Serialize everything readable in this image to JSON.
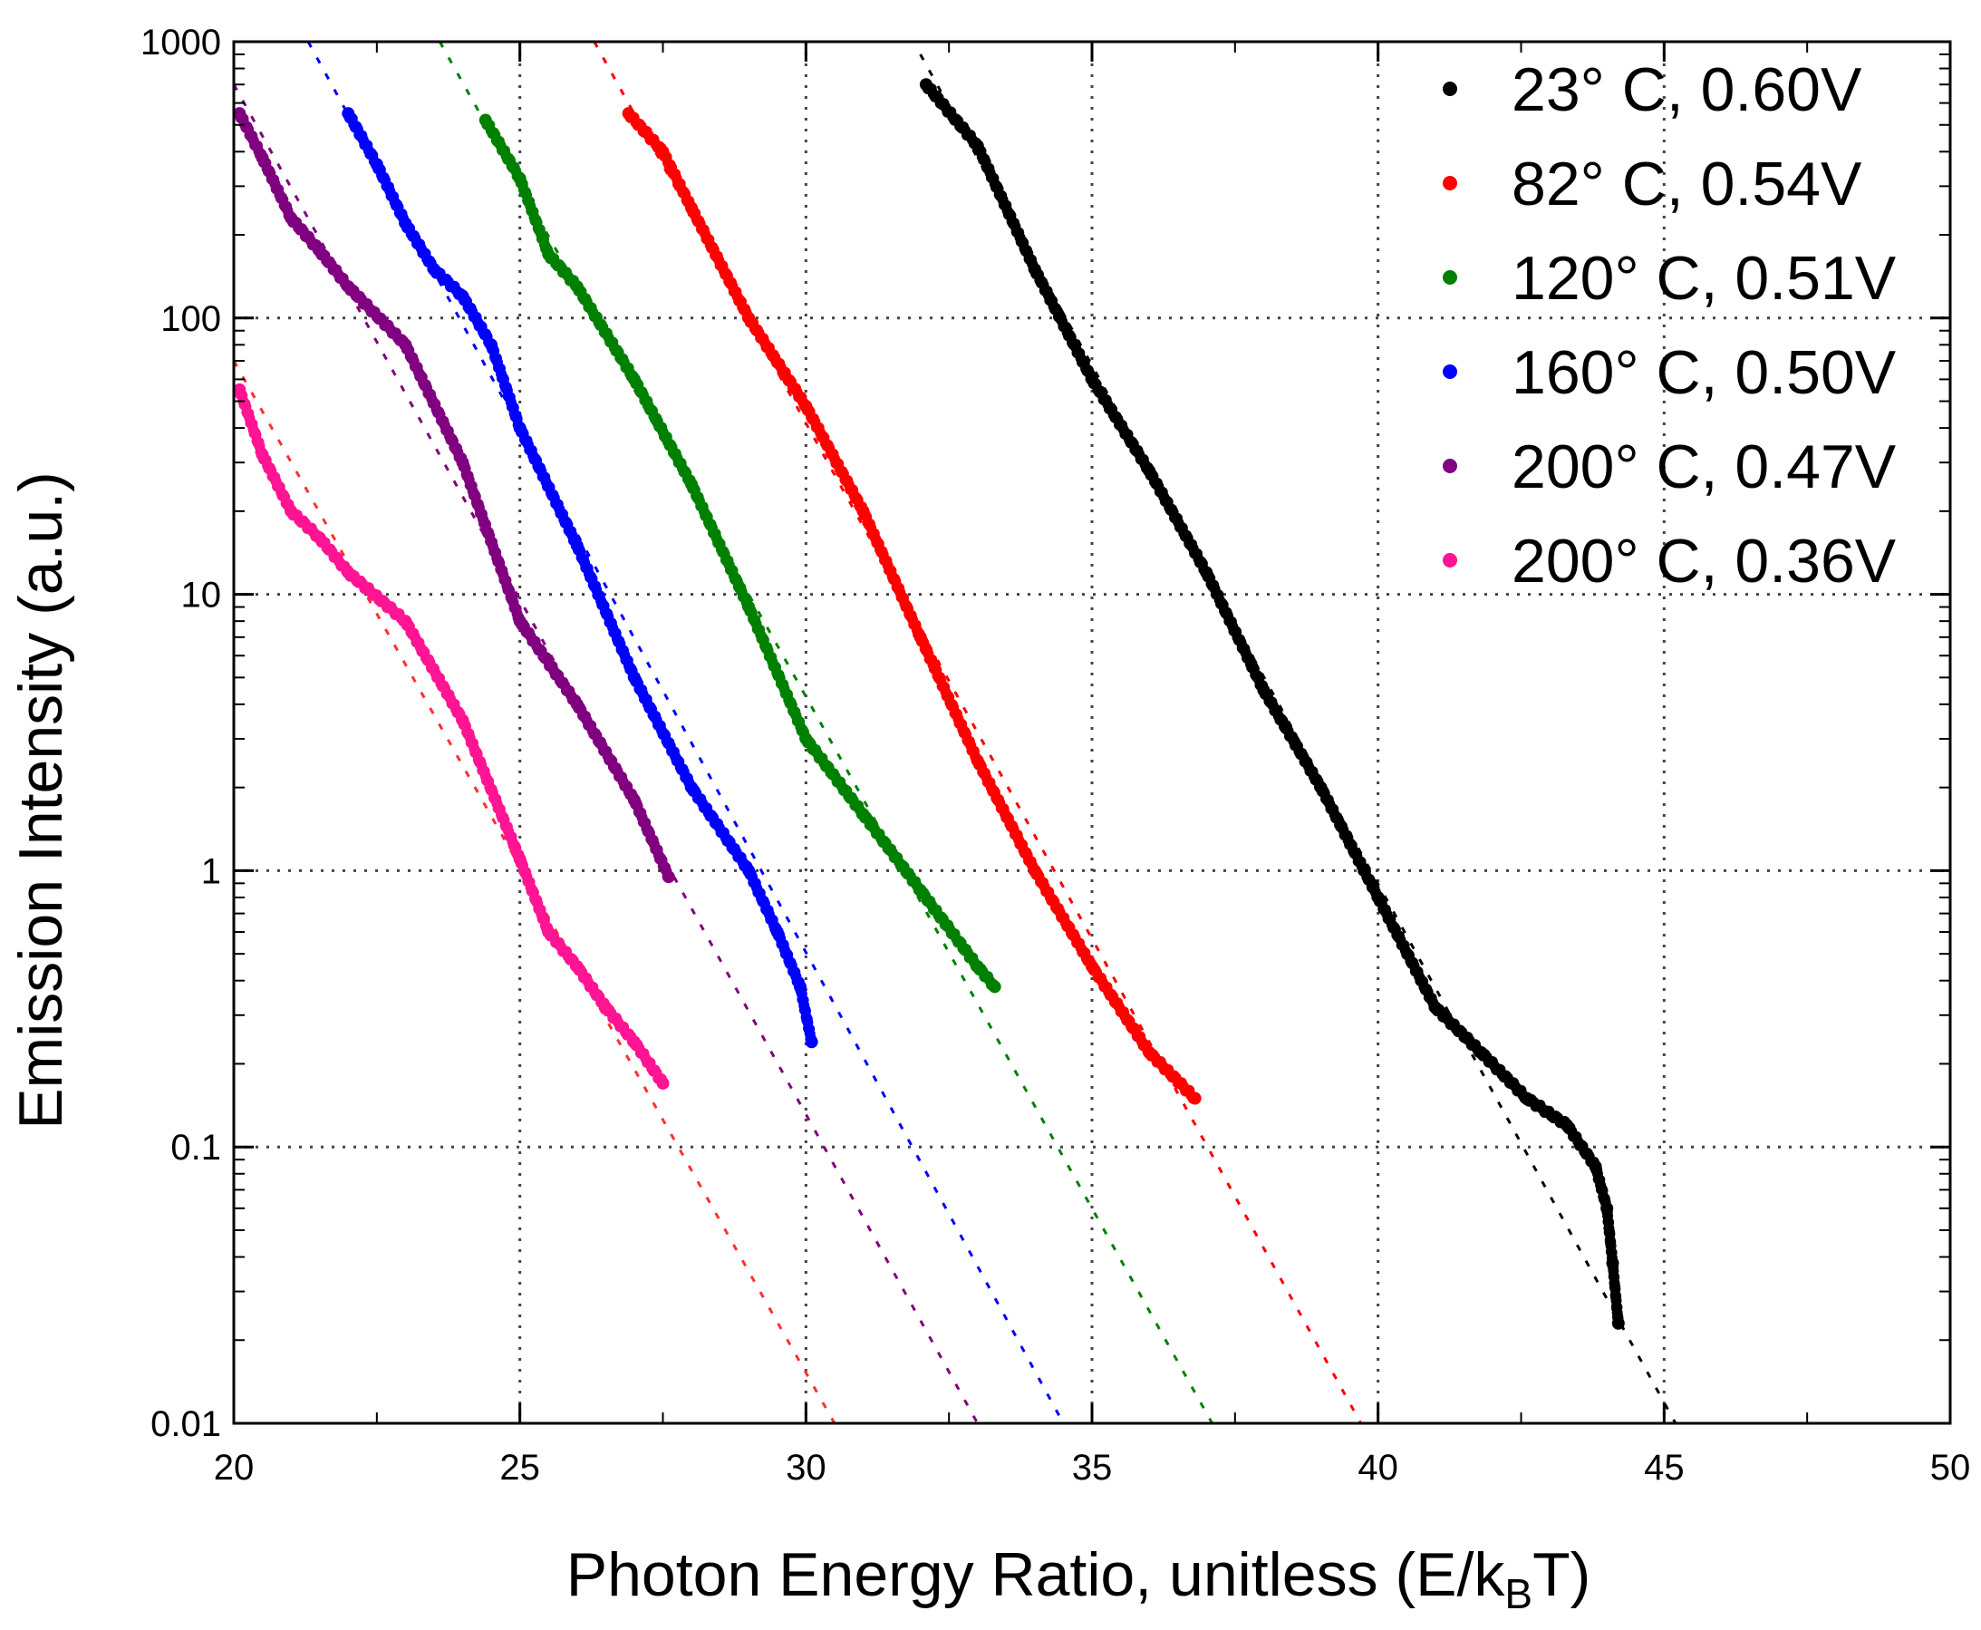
{
  "chart_data": {
    "type": "scatter",
    "title": "",
    "xlabel": "Photon Energy Ratio, unitless (E/k",
    "xlabel_sub": "B",
    "xlabel_end": "T)",
    "ylabel": "Emission Intensity  (a.u.)",
    "xlim": [
      20,
      50
    ],
    "ylim": [
      0.01,
      1000
    ],
    "yscale": "log",
    "grid": true,
    "legend_position": "top-right",
    "x_ticks": [
      20,
      25,
      30,
      35,
      40,
      45,
      50
    ],
    "x_tick_labels": [
      "20",
      "25",
      "30",
      "35",
      "40",
      "45",
      "50"
    ],
    "y_ticks": [
      0.01,
      0.1,
      1,
      10,
      100,
      1000
    ],
    "y_tick_labels": [
      "0.01",
      "0.1",
      "1",
      "10",
      "100",
      "1000"
    ],
    "series": [
      {
        "name": "23° C, 0.60V",
        "color": "#000000",
        "data": [
          [
            32.1,
            700
          ],
          [
            33.0,
            420
          ],
          [
            34.0,
            150
          ],
          [
            35.0,
            60
          ],
          [
            36.0,
            28
          ],
          [
            37.0,
            12
          ],
          [
            38.0,
            4.5
          ],
          [
            39.0,
            2.0
          ],
          [
            40.0,
            0.8
          ],
          [
            41.0,
            0.32
          ],
          [
            41.8,
            0.22
          ],
          [
            42.6,
            0.15
          ],
          [
            43.3,
            0.12
          ],
          [
            43.8,
            0.085
          ],
          [
            44.0,
            0.06
          ],
          [
            44.1,
            0.038
          ],
          [
            44.2,
            0.023
          ]
        ],
        "fit": [
          [
            32.0,
            900
          ],
          [
            45.2,
            0.01
          ]
        ]
      },
      {
        "name": "82° C, 0.54V",
        "color": "#ff0000",
        "data": [
          [
            26.9,
            550
          ],
          [
            27.5,
            400
          ],
          [
            28.0,
            250
          ],
          [
            29.0,
            100
          ],
          [
            30.0,
            48
          ],
          [
            31.0,
            20
          ],
          [
            32.0,
            7.0
          ],
          [
            33.0,
            2.5
          ],
          [
            34.0,
            1.0
          ],
          [
            35.0,
            0.45
          ],
          [
            36.0,
            0.22
          ],
          [
            36.8,
            0.15
          ]
        ],
        "fit": [
          [
            26.3,
            1000
          ],
          [
            39.7,
            0.01
          ]
        ]
      },
      {
        "name": "120° C, 0.51V",
        "color": "#008000",
        "data": [
          [
            24.4,
            520
          ],
          [
            25.0,
            320
          ],
          [
            25.5,
            170
          ],
          [
            26.0,
            130
          ],
          [
            27.0,
            60
          ],
          [
            28.0,
            25
          ],
          [
            29.0,
            9.0
          ],
          [
            30.0,
            3.0
          ],
          [
            31.0,
            1.6
          ],
          [
            32.0,
            0.85
          ],
          [
            33.0,
            0.45
          ],
          [
            33.3,
            0.38
          ]
        ],
        "fit": [
          [
            23.6,
            1000
          ],
          [
            37.1,
            0.01
          ]
        ]
      },
      {
        "name": "160° C, 0.50V",
        "color": "#0000ff",
        "data": [
          [
            22.0,
            550
          ],
          [
            22.5,
            360
          ],
          [
            23.0,
            220
          ],
          [
            23.5,
            150
          ],
          [
            24.0,
            120
          ],
          [
            24.5,
            80
          ],
          [
            25.0,
            40
          ],
          [
            26.0,
            15
          ],
          [
            27.0,
            5.0
          ],
          [
            28.0,
            2.0
          ],
          [
            29.0,
            1.0
          ],
          [
            29.5,
            0.6
          ],
          [
            29.9,
            0.38
          ],
          [
            30.1,
            0.24
          ]
        ],
        "fit": [
          [
            21.3,
            1000
          ],
          [
            34.5,
            0.01
          ]
        ]
      },
      {
        "name": "200° C, 0.47V",
        "color": "#800080",
        "data": [
          [
            20.1,
            550
          ],
          [
            20.5,
            380
          ],
          [
            21.0,
            230
          ],
          [
            21.5,
            175
          ],
          [
            22.0,
            130
          ],
          [
            23.0,
            80
          ],
          [
            24.0,
            30
          ],
          [
            25.0,
            8.0
          ],
          [
            26.0,
            4.0
          ],
          [
            27.0,
            1.8
          ],
          [
            27.6,
            0.95
          ]
        ],
        "fit": [
          [
            20.0,
            700
          ],
          [
            33.0,
            0.01
          ]
        ]
      },
      {
        "name": "200° C, 0.36V",
        "color": "#ff1493",
        "data": [
          [
            20.1,
            55
          ],
          [
            20.5,
            32
          ],
          [
            21.0,
            20
          ],
          [
            21.5,
            16
          ],
          [
            22.0,
            12
          ],
          [
            23.0,
            8.0
          ],
          [
            24.0,
            3.5
          ],
          [
            25.0,
            1.1
          ],
          [
            25.5,
            0.6
          ],
          [
            26.0,
            0.45
          ],
          [
            26.5,
            0.32
          ],
          [
            27.0,
            0.24
          ],
          [
            27.5,
            0.17
          ]
        ],
        "fit": [
          [
            20.0,
            70
          ],
          [
            30.5,
            0.01
          ]
        ],
        "fit_color": "#ff3030"
      }
    ]
  }
}
